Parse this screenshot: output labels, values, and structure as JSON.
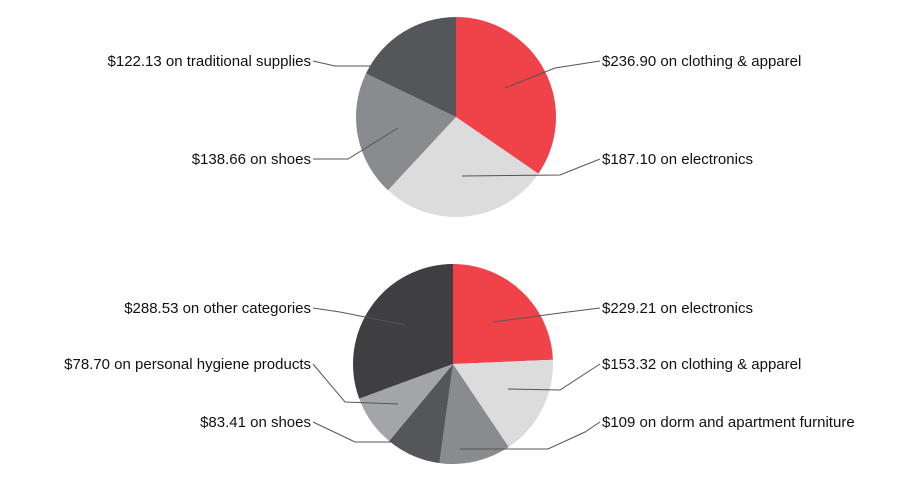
{
  "chart_data": [
    {
      "type": "pie",
      "colors": [
        "#ef4349",
        "#dcdcdd",
        "#8a8b8e",
        "#55565a"
      ],
      "slices": [
        {
          "label": "$236.90 on clothing & apparel",
          "value": 236.9
        },
        {
          "label": "$187.10 on electronics",
          "value": 187.1
        },
        {
          "label": "$138.66 on shoes",
          "value": 138.66
        },
        {
          "label": "$122.13 on traditional supplies",
          "value": 122.13
        }
      ]
    },
    {
      "type": "pie",
      "colors": [
        "#ef4349",
        "#dcdcdd",
        "#8a8b8e",
        "#55565a",
        "#a4a5a8",
        "#3f3f42"
      ],
      "slices": [
        {
          "label": "$229.21 on electronics",
          "value": 229.21
        },
        {
          "label": "$153.32 on clothing & apparel",
          "value": 153.32
        },
        {
          "label": "$109 on dorm and apartment furniture",
          "value": 109
        },
        {
          "label": "$83.41 on shoes",
          "value": 83.41
        },
        {
          "label": "$78.70 on personal hygiene products",
          "value": 78.7
        },
        {
          "label": "$288.53 on other categories",
          "value": 288.53
        }
      ]
    }
  ]
}
